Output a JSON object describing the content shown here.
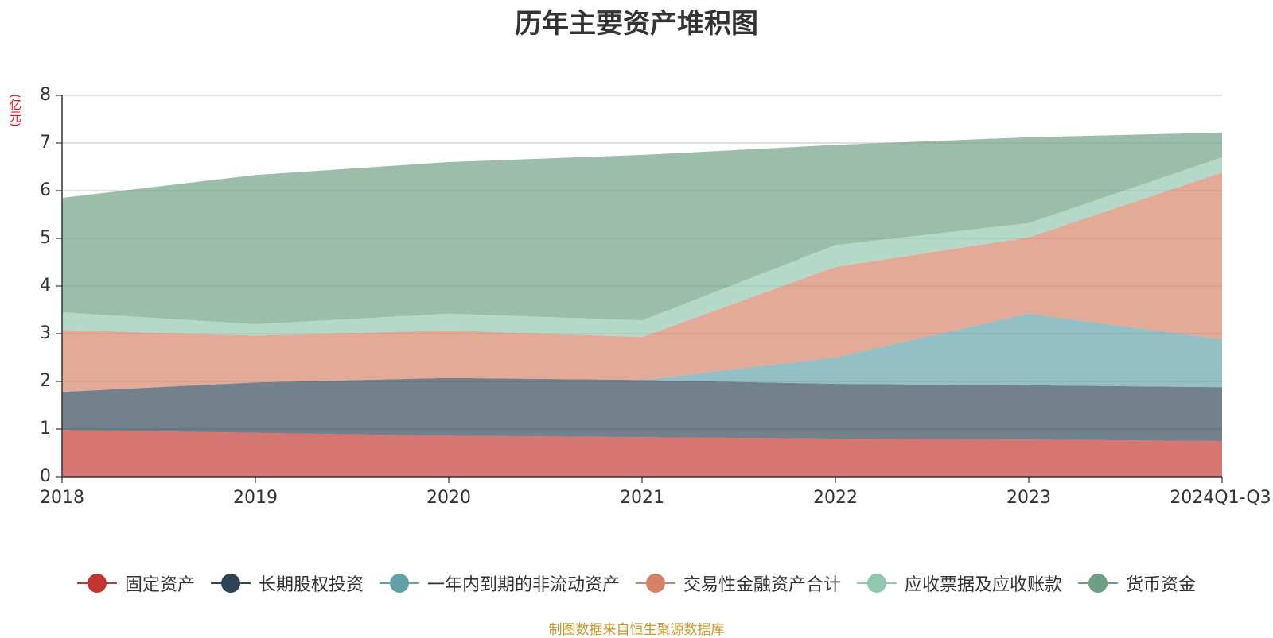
{
  "chart_data": {
    "type": "area",
    "stacked": true,
    "title": "历年主要资产堆积图",
    "ylabel": "(亿元)",
    "ylim": [
      0,
      8
    ],
    "yticks": [
      "0",
      "1",
      "2",
      "3",
      "4",
      "5",
      "6",
      "7",
      "8"
    ],
    "categories": [
      "2018",
      "2019",
      "2020",
      "2021",
      "2022",
      "2023",
      "2024Q1-Q3"
    ],
    "grid": true,
    "legend_position": "bottom",
    "series": [
      {
        "name": "固定资产",
        "color": "#c23531",
        "values": [
          0.98,
          0.92,
          0.86,
          0.83,
          0.8,
          0.78,
          0.75
        ]
      },
      {
        "name": "长期股权投资",
        "color": "#2f4554",
        "values": [
          0.8,
          1.06,
          1.21,
          1.2,
          1.15,
          1.14,
          1.13
        ]
      },
      {
        "name": "一年内到期的非流动资产",
        "color": "#61a0a8",
        "values": [
          0.0,
          0.0,
          0.0,
          0.0,
          0.55,
          1.5,
          1.0
        ]
      },
      {
        "name": "交易性金融资产合计",
        "color": "#d48265",
        "values": [
          1.3,
          0.98,
          1.0,
          0.9,
          1.9,
          1.6,
          3.5
        ]
      },
      {
        "name": "应收票据及应收账款",
        "color": "#91c7ae",
        "values": [
          0.37,
          0.24,
          0.35,
          0.35,
          0.46,
          0.3,
          0.32
        ]
      },
      {
        "name": "货币资金",
        "color": "#6e9e83",
        "values": [
          2.4,
          3.13,
          3.18,
          3.47,
          2.1,
          1.8,
          0.52
        ]
      }
    ]
  },
  "source_note": "制图数据来自恒生聚源数据库"
}
